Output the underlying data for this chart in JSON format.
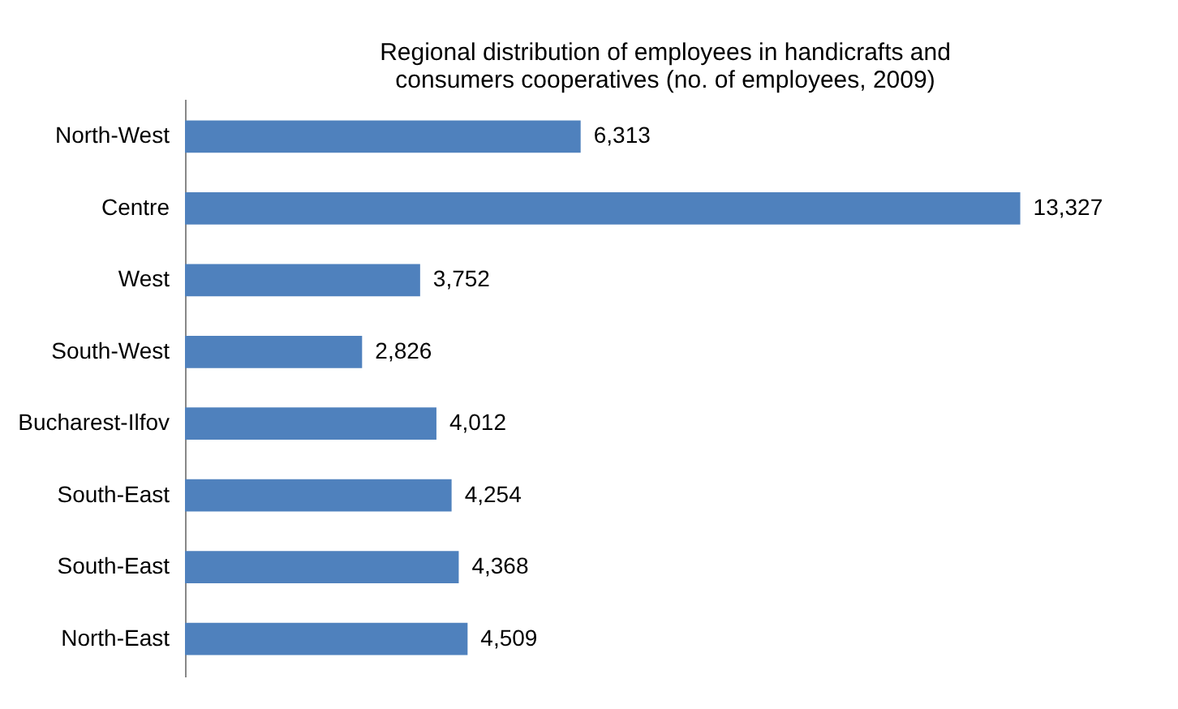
{
  "chart_data": {
    "type": "bar",
    "orientation": "horizontal",
    "title": "Regional distribution of employees in handicrafts and consumers cooperatives (no. of employees, 2009)",
    "categories": [
      "North-West",
      "Centre",
      "West",
      "South-West",
      "Bucharest-Ilfov",
      "South-East",
      "South-East",
      "North-East"
    ],
    "values": [
      6313,
      13327,
      3752,
      2826,
      4012,
      4254,
      4368,
      4509
    ],
    "value_labels": [
      "6,313",
      "13,327",
      "3,752",
      "2,826",
      "4,012",
      "4,254",
      "4,368",
      "4,509"
    ],
    "color": "#4f81bd",
    "tick_labels": "y"
  }
}
